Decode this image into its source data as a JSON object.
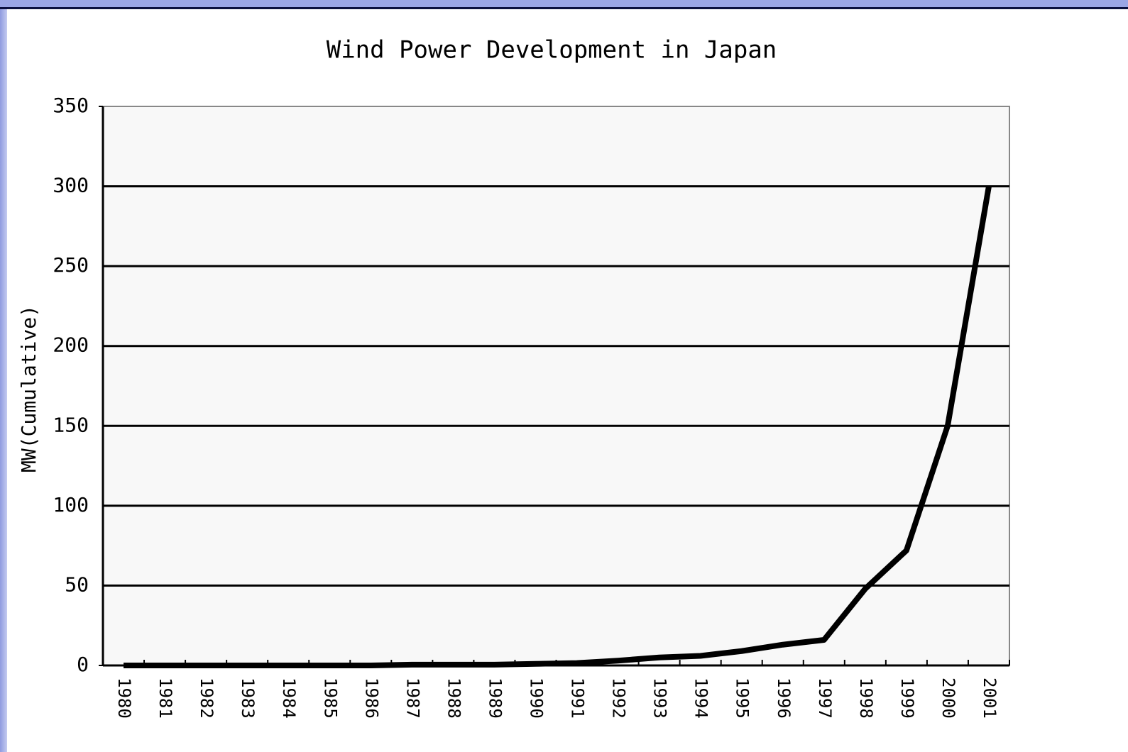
{
  "chart_data": {
    "type": "line",
    "title": "Wind Power Development in Japan",
    "y_label": "MW(Cumulative)",
    "categories": [
      "1980",
      "1981",
      "1982",
      "1983",
      "1984",
      "1985",
      "1986",
      "1987",
      "1988",
      "1989",
      "1990",
      "1991",
      "1992",
      "1993",
      "1994",
      "1995",
      "1996",
      "1997",
      "1998",
      "1999",
      "2000",
      "2001"
    ],
    "series": [
      {
        "name": "MW(Cumulative)",
        "color": "#000000",
        "values": [
          0,
          0,
          0,
          0,
          0,
          0,
          0,
          0.5,
          0.5,
          0.5,
          1,
          1.5,
          3,
          5,
          6,
          9,
          13,
          16,
          48,
          72,
          150,
          300
        ]
      }
    ],
    "ylim": [
      0,
      350
    ],
    "yticks": [
      0,
      50,
      100,
      150,
      200,
      250,
      300,
      350
    ],
    "grid": true
  }
}
